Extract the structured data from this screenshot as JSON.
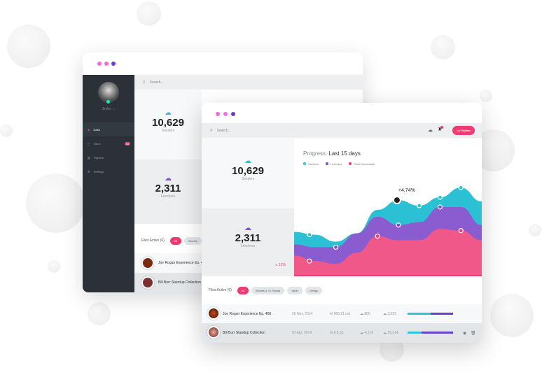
{
  "back_window": {
    "user": "Jimbo",
    "nav": [
      {
        "label": "Dash",
        "icon": "dashboard-icon",
        "active": true
      },
      {
        "label": "Inbox",
        "icon": "inbox-icon",
        "badge": "18"
      },
      {
        "label": "Reports",
        "icon": "chart-icon"
      },
      {
        "label": "Settings",
        "icon": "gear-icon"
      }
    ],
    "search_placeholder": "Search...",
    "seeders": {
      "value": "10,629",
      "label": "Seeders"
    },
    "leechers": {
      "value": "2,311",
      "label": "Leechers"
    },
    "files_active": "Files Active (6)",
    "filters": [
      "All",
      "Movies"
    ],
    "rows": [
      "Joe Rogan Experience Ep. 468",
      "Bill Burr Standup Collection"
    ]
  },
  "front_window": {
    "search_placeholder": "Search...",
    "button_label": "Le' Button",
    "seeders": {
      "value": "10,629",
      "label": "Seeders"
    },
    "leechers": {
      "value": "2,311",
      "label": "Leechers",
      "change": "12%"
    },
    "files_active": "Files Active (6)",
    "filters": [
      "All",
      "Movies & Tv Shows",
      "Sport",
      "Design"
    ],
    "rows": [
      {
        "title": "Joe Rogan Experience Ep. 468",
        "date": "26 Nov, 2014",
        "size": "965.21 mb",
        "down": "860",
        "up": "3,522",
        "progress_seed": 0.5,
        "progress_leech": 0.5
      },
      {
        "title": "Bill Burr Standup Collection",
        "date": "02 Apr, 2014",
        "size": "9.8 gb",
        "down": "4,214",
        "up": "19,214",
        "progress_seed": 0.3,
        "progress_leech": 0.7
      }
    ]
  },
  "colors": {
    "seeders": "#2ec5d3",
    "leechers": "#6a3fc9",
    "downloads": "#ef3a72",
    "dark": "#2b3137"
  },
  "chart_data": {
    "type": "area",
    "title_prefix": "Progress:",
    "title": "Last 15 days",
    "legend_position": "top-left",
    "annotation": "+4.74%",
    "grid": false,
    "x": [
      1,
      2,
      3,
      4,
      5,
      6,
      7,
      8,
      9,
      10
    ],
    "ylim": [
      0,
      100
    ],
    "series": [
      {
        "name": "Seeders",
        "color": "#2ec5d3",
        "values": [
          32,
          30,
          25,
          31,
          48,
          55,
          51,
          57,
          64,
          54
        ]
      },
      {
        "name": "Leechers",
        "color": "#7b4fd0",
        "values": [
          23,
          21,
          21,
          31,
          43,
          37,
          39,
          50,
          50,
          37
        ]
      },
      {
        "name": "Total Downloads",
        "color": "#ef3a72",
        "values": [
          15,
          11,
          9,
          17,
          29,
          26,
          26,
          34,
          33,
          26
        ]
      }
    ]
  }
}
